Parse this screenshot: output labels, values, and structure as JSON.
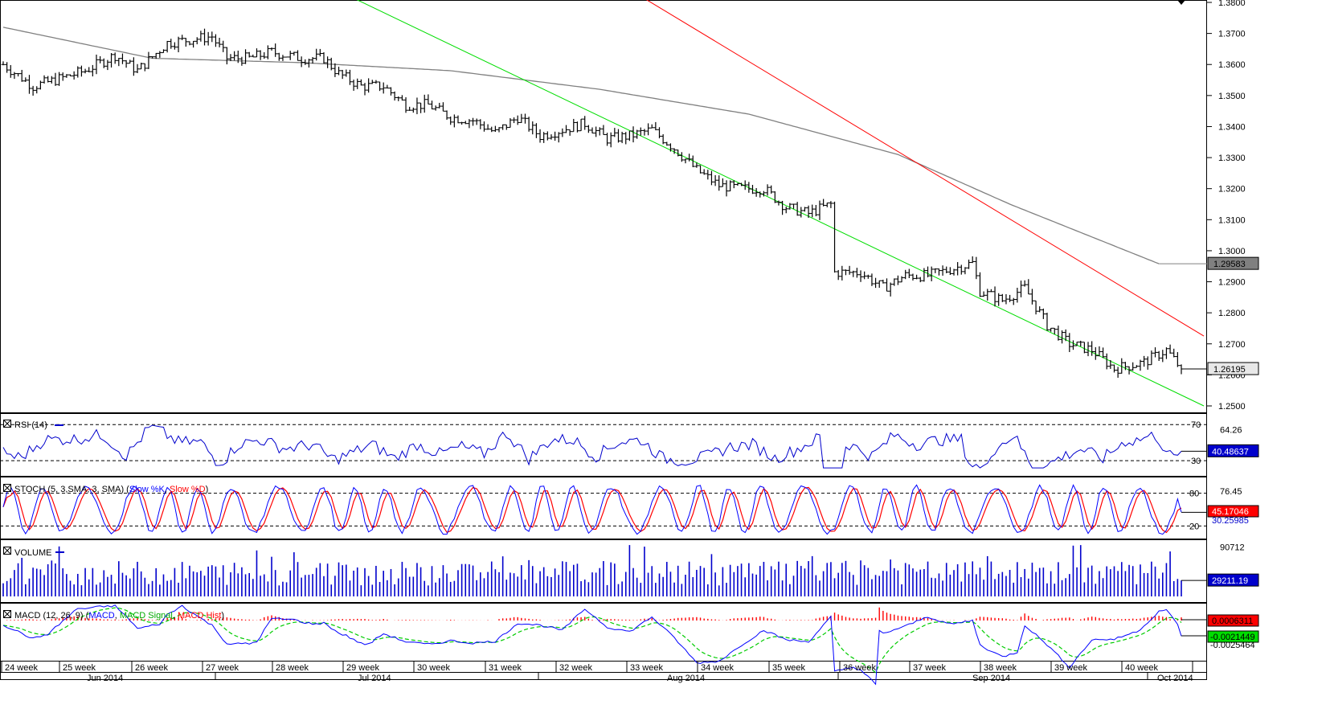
{
  "chart_data": [
    {
      "type": "ohlc",
      "panel": "price",
      "ylim": [
        1.2475,
        1.38
      ],
      "y_ticks": [
        "1.2500",
        "1.2600",
        "1.2700",
        "1.2800",
        "1.2900",
        "1.3000",
        "1.3100",
        "1.3200",
        "1.3300",
        "1.3400",
        "1.3500",
        "1.3600",
        "1.3700",
        "1.3800"
      ],
      "price_anchors": [
        {
          "t": 0,
          "p": 1.36
        },
        {
          "t": 8,
          "p": 1.353
        },
        {
          "t": 14,
          "p": 1.355
        },
        {
          "t": 22,
          "p": 1.358
        },
        {
          "t": 30,
          "p": 1.363
        },
        {
          "t": 36,
          "p": 1.358
        },
        {
          "t": 44,
          "p": 1.367
        },
        {
          "t": 50,
          "p": 1.368
        },
        {
          "t": 56,
          "p": 1.369
        },
        {
          "t": 60,
          "p": 1.362
        },
        {
          "t": 66,
          "p": 1.362
        },
        {
          "t": 72,
          "p": 1.364
        },
        {
          "t": 80,
          "p": 1.362
        },
        {
          "t": 86,
          "p": 1.362
        },
        {
          "t": 90,
          "p": 1.357
        },
        {
          "t": 96,
          "p": 1.353
        },
        {
          "t": 102,
          "p": 1.353
        },
        {
          "t": 108,
          "p": 1.347
        },
        {
          "t": 114,
          "p": 1.347
        },
        {
          "t": 120,
          "p": 1.343
        },
        {
          "t": 126,
          "p": 1.342
        },
        {
          "t": 132,
          "p": 1.338
        },
        {
          "t": 138,
          "p": 1.343
        },
        {
          "t": 144,
          "p": 1.337
        },
        {
          "t": 150,
          "p": 1.339
        },
        {
          "t": 156,
          "p": 1.341
        },
        {
          "t": 162,
          "p": 1.336
        },
        {
          "t": 168,
          "p": 1.337
        },
        {
          "t": 174,
          "p": 1.339
        },
        {
          "t": 180,
          "p": 1.333
        },
        {
          "t": 186,
          "p": 1.326
        },
        {
          "t": 192,
          "p": 1.321
        },
        {
          "t": 198,
          "p": 1.32
        },
        {
          "t": 204,
          "p": 1.32
        },
        {
          "t": 210,
          "p": 1.314
        },
        {
          "t": 216,
          "p": 1.312
        },
        {
          "t": 222,
          "p": 1.315
        },
        {
          "t": 223,
          "p": 1.293
        },
        {
          "t": 230,
          "p": 1.293
        },
        {
          "t": 236,
          "p": 1.288
        },
        {
          "t": 242,
          "p": 1.292
        },
        {
          "t": 248,
          "p": 1.292
        },
        {
          "t": 254,
          "p": 1.294
        },
        {
          "t": 260,
          "p": 1.296
        },
        {
          "t": 262,
          "p": 1.287
        },
        {
          "t": 268,
          "p": 1.284
        },
        {
          "t": 274,
          "p": 1.288
        },
        {
          "t": 280,
          "p": 1.276
        },
        {
          "t": 286,
          "p": 1.27
        },
        {
          "t": 292,
          "p": 1.268
        },
        {
          "t": 298,
          "p": 1.262
        },
        {
          "t": 306,
          "p": 1.264
        },
        {
          "t": 312,
          "p": 1.268
        },
        {
          "t": 316,
          "p": 1.2619
        }
      ],
      "moving_average_anchors": [
        {
          "t": 0,
          "p": 1.372
        },
        {
          "t": 40,
          "p": 1.362
        },
        {
          "t": 80,
          "p": 1.3606
        },
        {
          "t": 120,
          "p": 1.358
        },
        {
          "t": 160,
          "p": 1.352
        },
        {
          "t": 200,
          "p": 1.344
        },
        {
          "t": 240,
          "p": 1.331
        },
        {
          "t": 270,
          "p": 1.315
        },
        {
          "t": 295,
          "p": 1.303
        },
        {
          "t": 310,
          "p": 1.2958
        }
      ],
      "channel_upper": {
        "p0": 1.43,
        "p1": 1.2725,
        "color": "#ff0000"
      },
      "channel_lower": {
        "p0": 1.4,
        "p1": 1.25,
        "color": "#00dd00"
      },
      "series_color": "#000000",
      "ma_color": "#808080",
      "last_labels": [
        {
          "value": "1.29583",
          "style": "gray"
        },
        {
          "value": "1.26195",
          "style": "light"
        }
      ]
    },
    {
      "type": "line",
      "panel": "rsi",
      "title": "RSI (14)",
      "ylim": [
        15,
        80
      ],
      "levels": [
        70,
        30
      ],
      "y_ticks": [
        "70",
        "64.26",
        "30"
      ],
      "last_value": "40.48637",
      "hidden_value": "30.68",
      "color": "#0000cc"
    },
    {
      "type": "line",
      "panel": "stoch",
      "title": "STOCH (5, 3,SMA, 3, SMA)",
      "series_names": [
        "Slow %K",
        "Slow %D"
      ],
      "ylim": [
        0,
        100
      ],
      "levels": [
        80,
        20
      ],
      "y_ticks": [
        "80",
        "76.45",
        "20"
      ],
      "last_values": [
        "45.17046",
        "30.25985"
      ],
      "colors": [
        "#0000ff",
        "#ff0000"
      ]
    },
    {
      "type": "bar",
      "panel": "volume",
      "title": "VOLUME",
      "ylim": [
        0,
        100000
      ],
      "y_ticks": [
        "90712"
      ],
      "last_value": "29211.19",
      "color": "#0000cc"
    },
    {
      "type": "line",
      "panel": "macd",
      "title": "MACD (12, 26, 9)",
      "series_names": [
        "MACD",
        "MACD Signal",
        "MACD Hist"
      ],
      "colors": [
        "#0000ff",
        "#00cc00",
        "#ff0000"
      ],
      "last_values": [
        "0.0006311",
        "-0.0021449",
        "-0.0025464"
      ]
    }
  ],
  "x_axis": {
    "week_labels": [
      "24 week",
      "25 week",
      "26 week",
      "27 week",
      "28 week",
      "29 week",
      "30 week",
      "31 week",
      "32 week",
      "33 week",
      "34 week",
      "35 week",
      "36 week",
      "37 week",
      "38 week",
      "39 week",
      "40 week"
    ],
    "month_labels": [
      "Jun 2014",
      "Jul 2014",
      "Aug 2014",
      "Sep 2014",
      "Oct 2014"
    ]
  }
}
